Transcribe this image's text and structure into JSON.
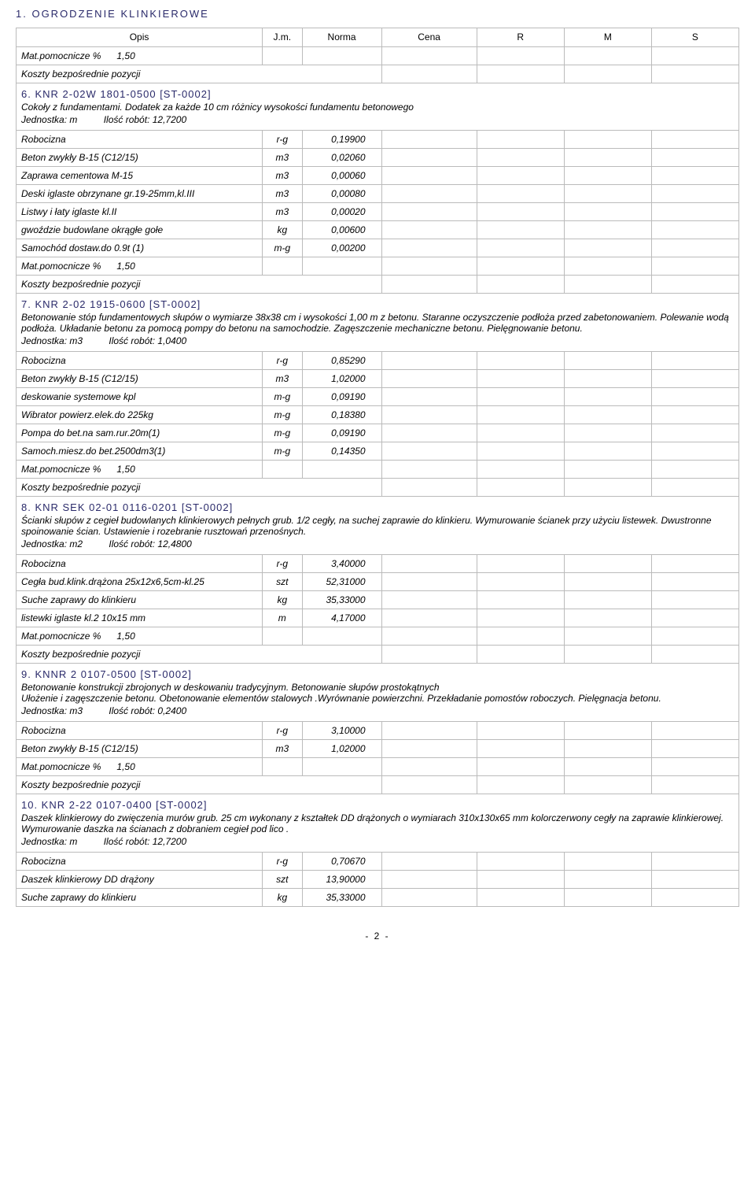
{
  "page_title": "1. OGRODZENIE KLINKIEROWE",
  "page_number": "- 2 -",
  "headers": {
    "opis": "Opis",
    "jm": "J.m.",
    "norma": "Norma",
    "cena": "Cena",
    "r": "R",
    "m": "M",
    "s": "S"
  },
  "mat_pom_prefix": "Mat.pomocnicze %",
  "mat_pom_value": "1,50",
  "koszty_label": "Koszty bezpośrednie pozycji",
  "jednostka_label": "Jednostka:",
  "ilosc_label": "Ilość robót:",
  "sections": {
    "s6": {
      "title": "6. KNR 2-02W  1801-0500     [ST-0002]",
      "desc": "Cokoły z fundamentami. Dodatek  za każde 10 cm różnicy wysokości  fundamentu betonowego",
      "unit": "m",
      "qty": "12,7200",
      "rows": [
        {
          "opis": "Robocizna",
          "jm": "r-g",
          "norma": "0,19900"
        },
        {
          "opis": "Beton zwykły B-15 (C12/15)",
          "jm": "m3",
          "norma": "0,02060"
        },
        {
          "opis": "Zaprawa cementowa M-15",
          "jm": "m3",
          "norma": "0,00060"
        },
        {
          "opis": "Deski iglaste obrzynane gr.19-25mm,kl.III",
          "jm": "m3",
          "norma": "0,00080"
        },
        {
          "opis": "Listwy i łaty iglaste kl.II",
          "jm": "m3",
          "norma": "0,00020"
        },
        {
          "opis": "gwoździe budowlane okrągłe gołe",
          "jm": "kg",
          "norma": "0,00600"
        },
        {
          "opis": "Samochód dostaw.do 0.9t (1)",
          "jm": "m-g",
          "norma": "0,00200"
        }
      ]
    },
    "s7": {
      "title": "7. KNR 2-02  1915-0600     [ST-0002]",
      "desc": "Betonowanie  stóp fundamentowych słupów o wymiarze 38x38 cm i wysokości 1,00 m z betonu. Staranne oczyszczenie podłoża przed zabetonowaniem. Polewanie wodą podłoża. Układanie betonu za pomocą pompy do betonu na samochodzie. Zagęszczenie mechaniczne betonu. Pielęgnowanie betonu.",
      "unit": "m3",
      "qty": "1,0400",
      "rows": [
        {
          "opis": "Robocizna",
          "jm": "r-g",
          "norma": "0,85290"
        },
        {
          "opis": "Beton zwykły B-15 (C12/15)",
          "jm": "m3",
          "norma": "1,02000"
        },
        {
          "opis": "deskowanie systemowe kpl",
          "jm": "m-g",
          "norma": "0,09190"
        },
        {
          "opis": "Wibrator powierz.elek.do 225kg",
          "jm": "m-g",
          "norma": "0,18380"
        },
        {
          "opis": "Pompa do bet.na sam.rur.20m(1)",
          "jm": "m-g",
          "norma": "0,09190"
        },
        {
          "opis": "Samoch.miesz.do bet.2500dm3(1)",
          "jm": "m-g",
          "norma": "0,14350"
        }
      ]
    },
    "s8": {
      "title": "8. KNR SEK 02-01  0116-0201     [ST-0002]",
      "desc": "Ścianki słupów z cegieł budowlanych klinkierowych  pełnych grub. 1/2 cegły, na suchej zaprawie do klinkieru. Wymurowanie ścianek przy użyciu listewek. Dwustronne spoinowanie ścian. Ustawienie i rozebranie rusztowań przenośnych.",
      "unit": "m2",
      "qty": "12,4800",
      "rows": [
        {
          "opis": "Robocizna",
          "jm": "r-g",
          "norma": "3,40000"
        },
        {
          "opis": "Cegła bud.klink.drążona 25x12x6,5cm-kl.25",
          "jm": "szt",
          "norma": "52,31000"
        },
        {
          "opis": "Suche zaprawy do klinkieru",
          "jm": "kg",
          "norma": "35,33000"
        },
        {
          "opis": "listewki iglaste kl.2 10x15 mm",
          "jm": "m",
          "norma": "4,17000"
        }
      ]
    },
    "s9": {
      "title": "9. KNNR 2  0107-0500     [ST-0002]",
      "desc": "Betonowanie konstrukcji zbrojonych w deskowaniu tradycyjnym. Betonowanie słupów prostokątnych\nUłożenie i zagęszczenie betonu. Obetonowanie elementów stalowych .Wyrównanie powierzchni. Przekładanie pomostów roboczych. Pielęgnacja betonu.",
      "unit": "m3",
      "qty": "0,2400",
      "rows": [
        {
          "opis": "Robocizna",
          "jm": "r-g",
          "norma": "3,10000"
        },
        {
          "opis": "Beton zwykły B-15 (C12/15)",
          "jm": "m3",
          "norma": "1,02000"
        }
      ]
    },
    "s10": {
      "title": "10. KNR 2-22  0107-0400     [ST-0002]",
      "desc": "Daszek klinkierowy do zwięczenia murów grub. 25 cm wykonany z kształtek DD drążonych o wymiarach 310x130x65 mm kolorczerwony cegły na zaprawie klinkierowej. Wymurowanie daszka na ścianach z dobraniem cegieł pod lico .",
      "unit": "m",
      "qty": "12,7200",
      "rows": [
        {
          "opis": "Robocizna",
          "jm": "r-g",
          "norma": "0,70670"
        },
        {
          "opis": "Daszek klinkierowy DD drążony",
          "jm": "szt",
          "norma": "13,90000"
        },
        {
          "opis": "Suche zaprawy do klinkieru",
          "jm": "kg",
          "norma": "35,33000"
        }
      ]
    }
  }
}
